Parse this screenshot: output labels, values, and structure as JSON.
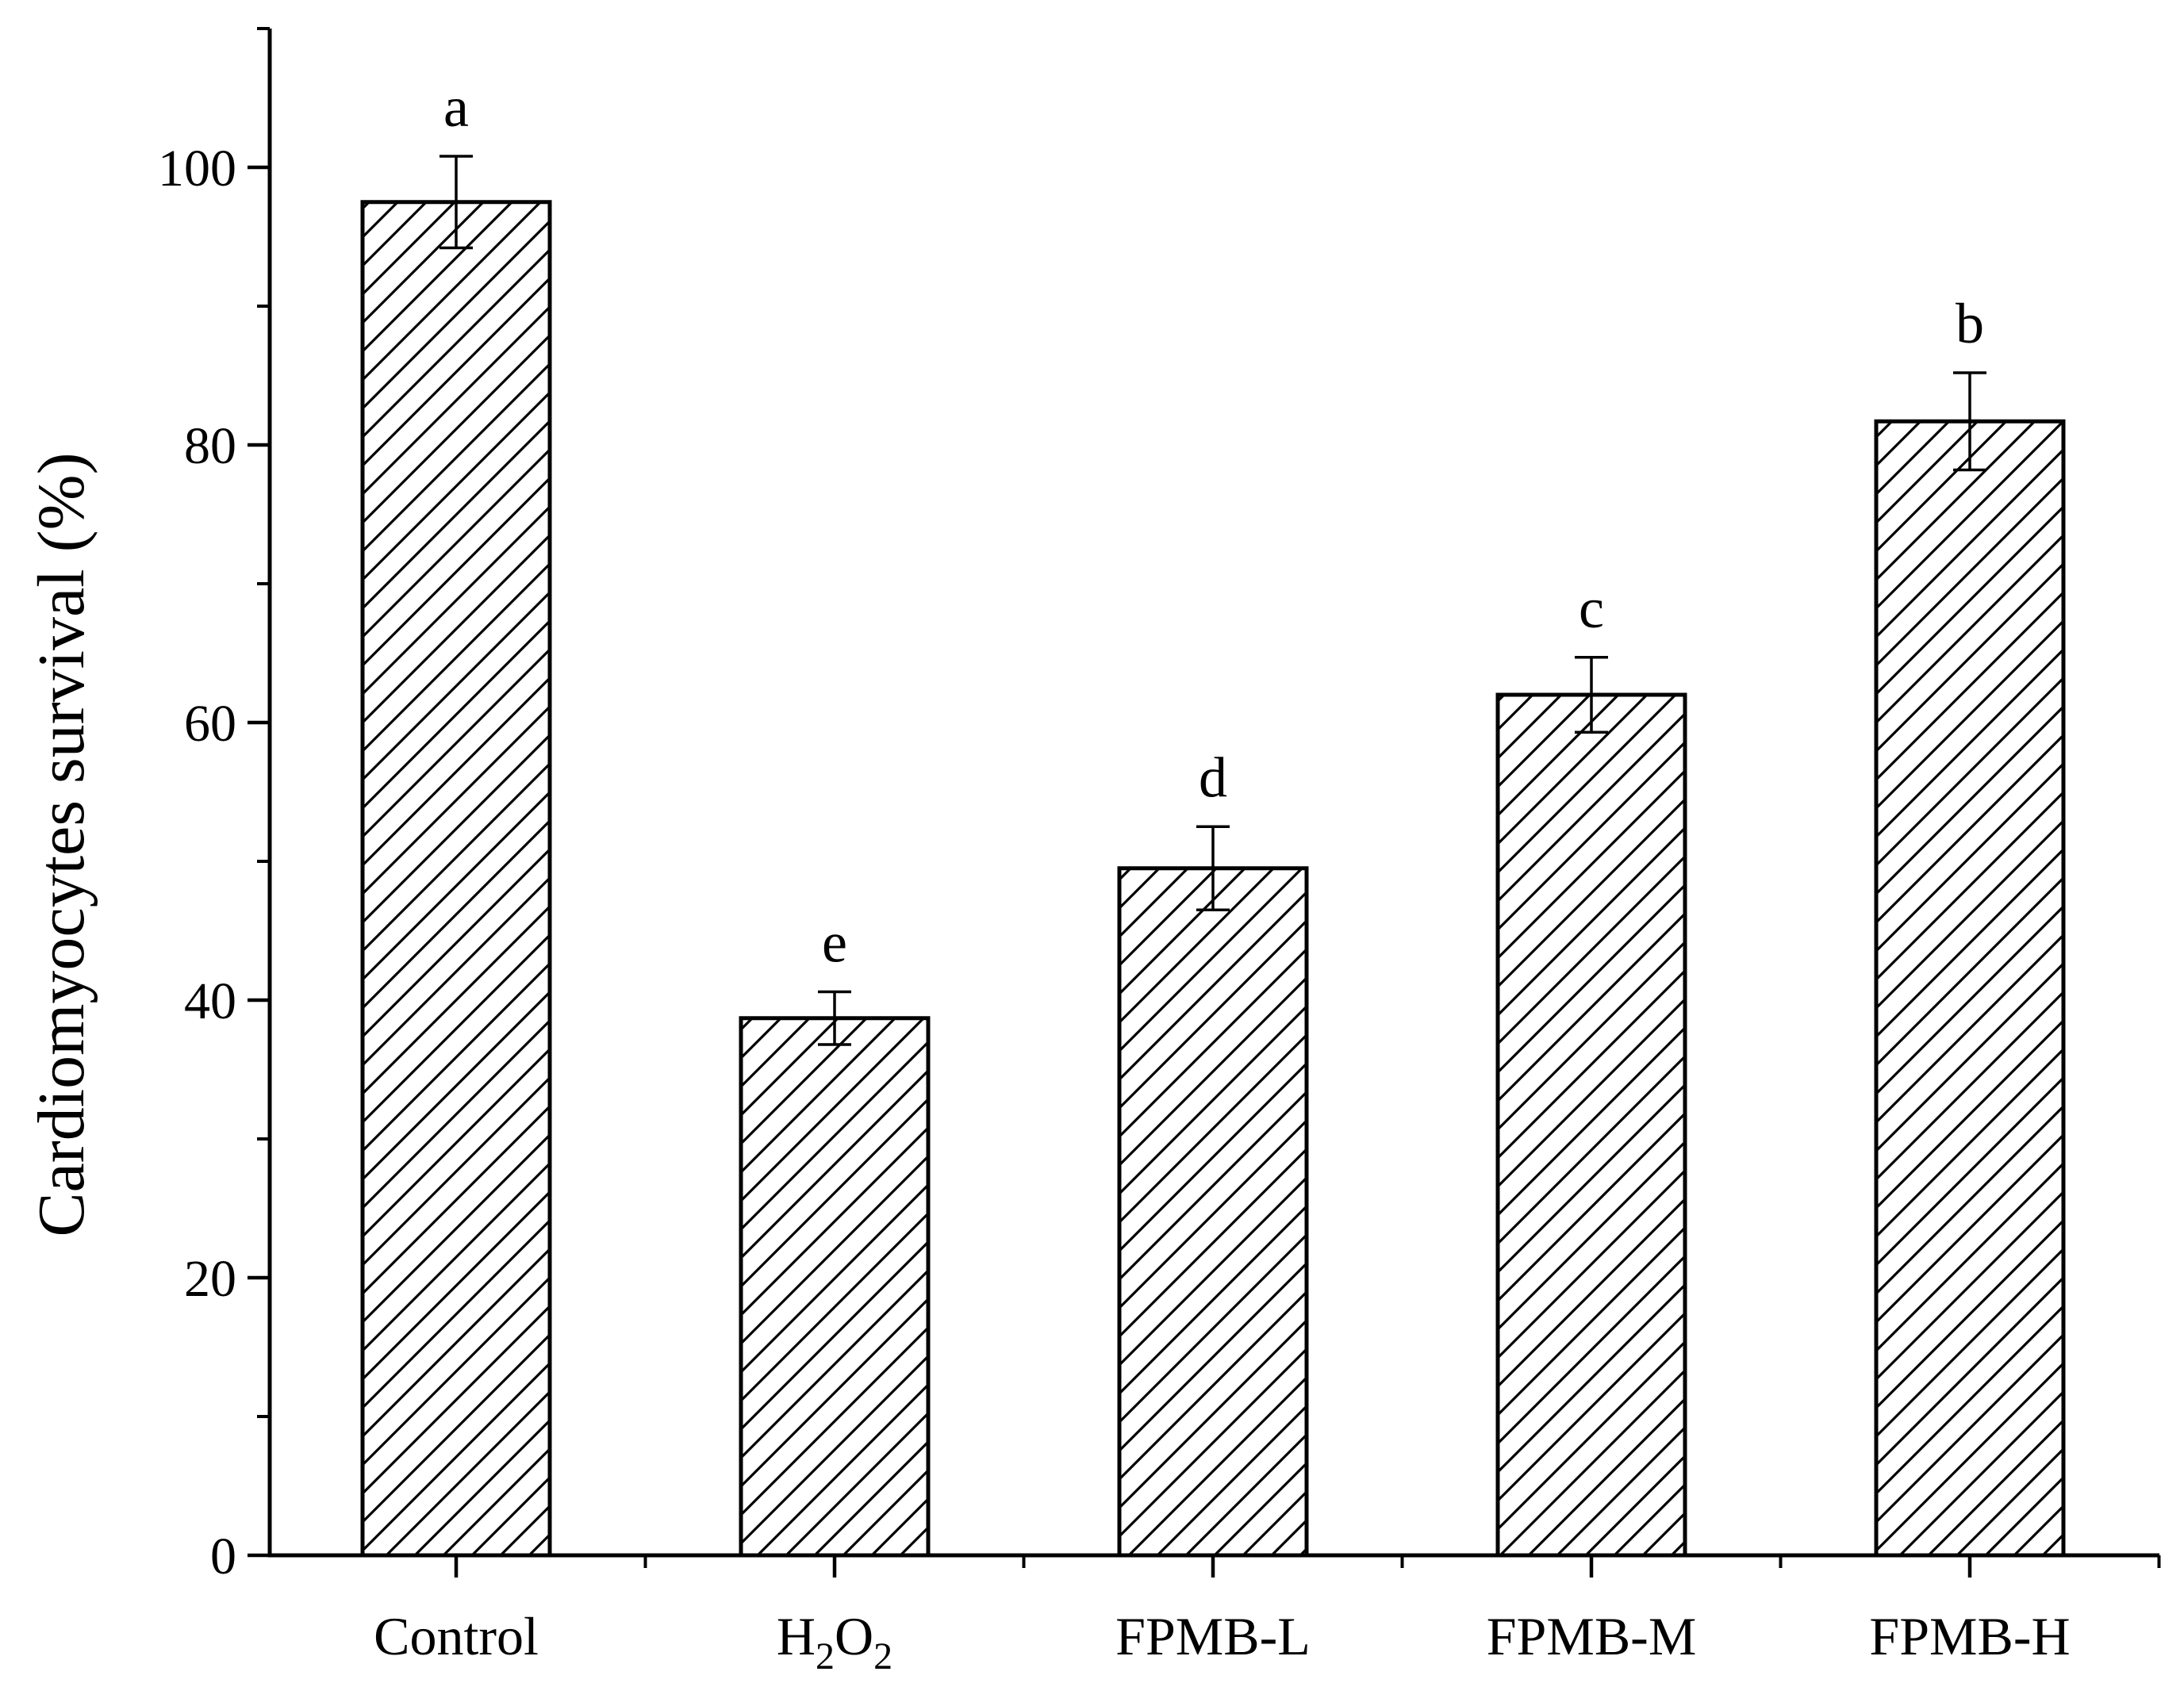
{
  "chart_data": {
    "type": "bar",
    "title": "",
    "xlabel": "",
    "ylabel": "Cardiomyocytes survival (%)",
    "ylim": [
      0,
      110
    ],
    "yticks": [
      0,
      20,
      40,
      60,
      80,
      100
    ],
    "grid": false,
    "legend": "none",
    "categories": [
      {
        "main": "Control"
      },
      {
        "main": "H",
        "sub1": "2",
        "mid": "O",
        "sub2": "2"
      },
      {
        "main": "FPMB-L"
      },
      {
        "main": "FPMB-M"
      },
      {
        "main": "FPMB-H"
      }
    ],
    "values": [
      97.5,
      38.7,
      49.5,
      62.0,
      81.7
    ],
    "errors": [
      3.3,
      1.9,
      3.0,
      2.7,
      3.5
    ],
    "significance": [
      "a",
      "e",
      "d",
      "c",
      "b"
    ],
    "bar_fill": "hatched",
    "colors": {
      "bar_edge": "#000000",
      "hatch": "#000000",
      "axis": "#000000",
      "background": "#ffffff"
    }
  }
}
